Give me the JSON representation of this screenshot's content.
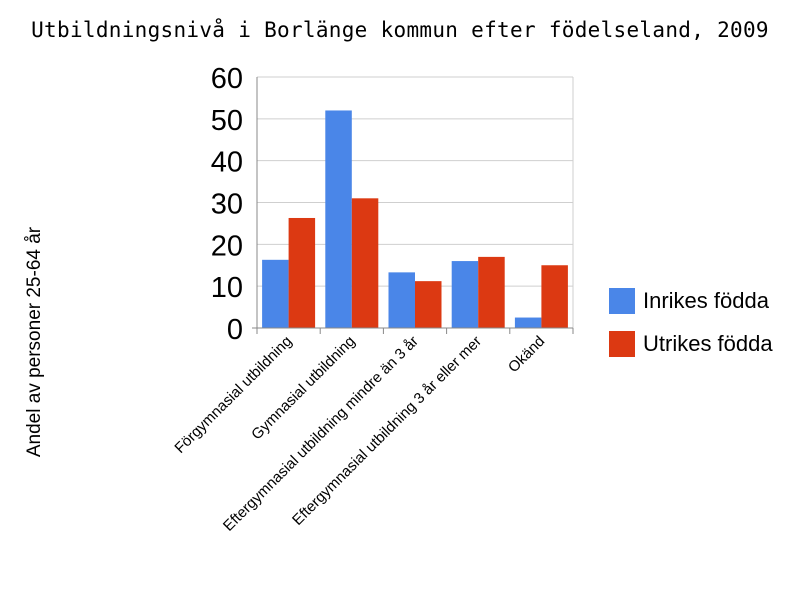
{
  "chart_data": {
    "type": "bar",
    "title": "Utbildningsnivå i Borlänge kommun efter födelseland, 2009",
    "xlabel": "",
    "ylabel": "Andel av personer 25-64 år",
    "ylim": [
      0,
      60
    ],
    "yticks": [
      "0",
      "10",
      "20",
      "30",
      "40",
      "50",
      "60"
    ],
    "grid": true,
    "legend_position": "right",
    "categories": [
      "Förgymnasial utbildning",
      "Gymnasial utbildning",
      "Eftergymnasial utbildning mindre än 3 år",
      "Eftergymnasial utbildning 3 år eller mer",
      "Okänd"
    ],
    "series": [
      {
        "name": "Inrikes födda",
        "color": "#4a86e8",
        "values": [
          16.3,
          52,
          13.3,
          16,
          2.5
        ]
      },
      {
        "name": "Utrikes födda",
        "color": "#dc3912",
        "values": [
          26.3,
          31,
          11.2,
          17,
          15
        ]
      }
    ]
  }
}
